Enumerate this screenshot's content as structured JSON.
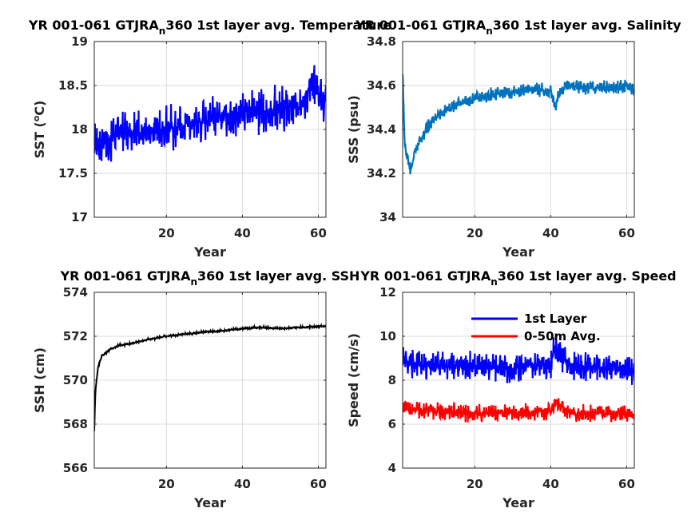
{
  "chart_data": [
    {
      "type": "line",
      "title": "YR 001-061 GTJRA",
      "title_sub": "n",
      "title_tail": "360 1st layer avg. Temperature",
      "xlabel": "Year",
      "ylabel": "SST (",
      "ylabel_sup": "o",
      "ylabel_tail": "C)",
      "xlim": [
        1,
        62
      ],
      "ylim": [
        17,
        19
      ],
      "xticks": [
        20,
        40,
        60
      ],
      "yticks": [
        17,
        17.5,
        18,
        18.5,
        19
      ],
      "ytick_labels": [
        "17",
        "17.5",
        "18",
        "18.5",
        "19"
      ],
      "grid": true,
      "series": [
        {
          "color": "#0000ff",
          "x": [
            1,
            5,
            10,
            15,
            20,
            25,
            30,
            35,
            40,
            45,
            50,
            55,
            58,
            60,
            62
          ],
          "y": [
            17.8,
            17.9,
            17.95,
            18.0,
            18.0,
            18.05,
            18.1,
            18.15,
            18.2,
            18.2,
            18.25,
            18.25,
            18.5,
            18.4,
            18.35
          ],
          "amp": 0.28
        }
      ]
    },
    {
      "type": "line",
      "title": "YR 001-061 GTJRA",
      "title_sub": "n",
      "title_tail": "360 1st layer avg. Salinity",
      "xlabel": "Year",
      "ylabel": "SSS (psu)",
      "xlim": [
        1,
        62
      ],
      "ylim": [
        34,
        34.8
      ],
      "xticks": [
        20,
        40,
        60
      ],
      "yticks": [
        34,
        34.2,
        34.4,
        34.6,
        34.8
      ],
      "ytick_labels": [
        "34",
        "34.2",
        "34.4",
        "34.6",
        "34.8"
      ],
      "grid": true,
      "series": [
        {
          "color": "#0072bd",
          "x": [
            1,
            1.5,
            2,
            3,
            5,
            8,
            10,
            15,
            20,
            25,
            30,
            35,
            40,
            41,
            42,
            44,
            50,
            55,
            60,
            62
          ],
          "y": [
            34.66,
            34.35,
            34.28,
            34.22,
            34.33,
            34.42,
            34.46,
            34.51,
            34.54,
            34.56,
            34.57,
            34.58,
            34.58,
            34.5,
            34.55,
            34.6,
            34.59,
            34.59,
            34.6,
            34.58
          ],
          "amp": 0.035
        }
      ]
    },
    {
      "type": "line",
      "title": "YR 001-061 GTJRA",
      "title_sub": "n",
      "title_tail": "360 1st layer avg. SSH",
      "xlabel": "Year",
      "ylabel": "SSH (cm)",
      "xlim": [
        1,
        62
      ],
      "ylim": [
        566,
        574
      ],
      "xticks": [
        20,
        40,
        60
      ],
      "yticks": [
        566,
        568,
        570,
        572,
        574
      ],
      "ytick_labels": [
        "566",
        "568",
        "570",
        "572",
        "574"
      ],
      "grid": true,
      "series": [
        {
          "color": "#000000",
          "x": [
            1,
            1.3,
            2,
            3,
            5,
            8,
            10,
            15,
            20,
            25,
            30,
            35,
            40,
            45,
            50,
            55,
            60,
            62
          ],
          "y": [
            567.7,
            569.5,
            570.6,
            571.1,
            571.4,
            571.6,
            571.65,
            571.85,
            572.0,
            572.1,
            572.2,
            572.25,
            572.35,
            572.4,
            572.35,
            572.4,
            572.45,
            572.45
          ],
          "amp": 0.06
        }
      ]
    },
    {
      "type": "line",
      "title": "YR 001-061 GTJRA",
      "title_sub": "n",
      "title_tail": "360 1st layer avg. Speed",
      "xlabel": "Year",
      "ylabel": "Speed (cm/s)",
      "xlim": [
        1,
        62
      ],
      "ylim": [
        4,
        12
      ],
      "xticks": [
        20,
        40,
        60
      ],
      "yticks": [
        4,
        6,
        8,
        10,
        12
      ],
      "ytick_labels": [
        "4",
        "6",
        "8",
        "10",
        "12"
      ],
      "grid": true,
      "legend": "top-right",
      "series": [
        {
          "name": "1st Layer",
          "color": "#0000ff",
          "x": [
            1,
            10,
            20,
            30,
            40,
            41,
            45,
            50,
            60,
            62
          ],
          "y": [
            8.8,
            8.7,
            8.6,
            8.6,
            8.7,
            9.5,
            8.6,
            8.6,
            8.6,
            8.4
          ],
          "amp": 0.75
        },
        {
          "name": "0-50m Avg.",
          "color": "#ff0000",
          "x": [
            1,
            10,
            20,
            30,
            40,
            41,
            45,
            50,
            60,
            62
          ],
          "y": [
            6.7,
            6.6,
            6.5,
            6.5,
            6.6,
            7.1,
            6.5,
            6.5,
            6.5,
            6.4
          ],
          "amp": 0.45
        }
      ]
    }
  ]
}
